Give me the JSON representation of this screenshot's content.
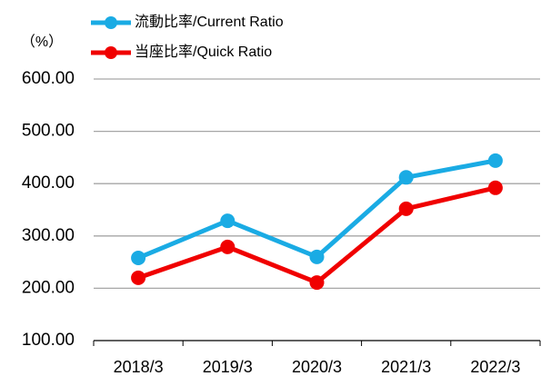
{
  "chart_data": {
    "type": "line",
    "unit_label": "（%）",
    "categories": [
      "2018/3",
      "2019/3",
      "2020/3",
      "2021/3",
      "2022/3"
    ],
    "series": [
      {
        "name": "流動比率/Current Ratio",
        "color": "#1aabe4",
        "values": [
          258,
          329,
          260,
          412,
          444
        ]
      },
      {
        "name": "当座比率/Quick Ratio",
        "color": "#f00000",
        "values": [
          220,
          279,
          211,
          352,
          392
        ]
      }
    ],
    "ylim": [
      100,
      600
    ],
    "yticks": [
      {
        "value": 100,
        "label": "100.00"
      },
      {
        "value": 200,
        "label": "200.00"
      },
      {
        "value": 300,
        "label": "300.00"
      },
      {
        "value": 400,
        "label": "400.00"
      },
      {
        "value": 500,
        "label": "500.00"
      },
      {
        "value": 600,
        "label": "600.00"
      }
    ],
    "grid": true
  }
}
